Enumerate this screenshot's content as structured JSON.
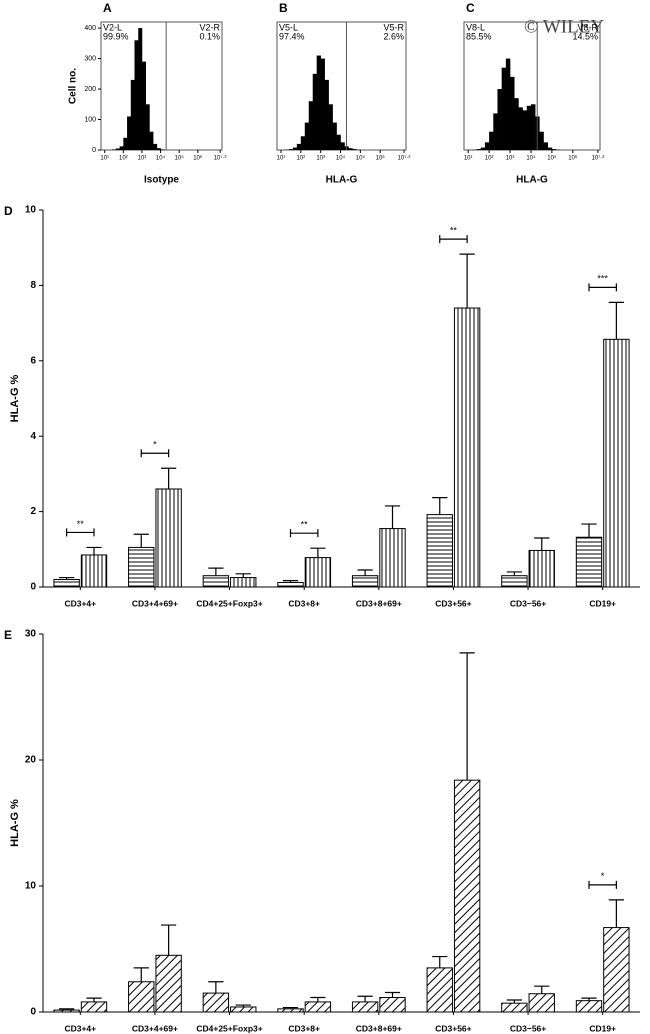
{
  "watermark": "© WILEY",
  "chart_data": [
    {
      "type": "histogram",
      "panel": "A",
      "x_label": "Isotype",
      "y_label": "Cell no.",
      "xlim": [
        0.8,
        7.3
      ],
      "xticks": [
        {
          "value": 1,
          "label": "10¹"
        },
        {
          "value": 2,
          "label": "10²"
        },
        {
          "value": 3,
          "label": "10³"
        },
        {
          "value": 4,
          "label": "10⁴"
        },
        {
          "value": 5,
          "label": "10⁵"
        },
        {
          "value": 6,
          "label": "10⁶"
        },
        {
          "value": 7.2,
          "label": "10⁷·²"
        }
      ],
      "ylim": [
        0,
        420
      ],
      "yticks": [
        0,
        100,
        200,
        300,
        400
      ],
      "bins": [
        1.0,
        1.2,
        1.4,
        1.6,
        1.8,
        2.0,
        2.2,
        2.4,
        2.6,
        2.8,
        3.0,
        3.2,
        3.4,
        3.6,
        3.8,
        4.0,
        4.2,
        4.4,
        4.6,
        4.8,
        5.0,
        5.2,
        5.4,
        5.6,
        5.8,
        6.0,
        6.2,
        6.4,
        6.6,
        6.8,
        7.0,
        7.2
      ],
      "counts": [
        0,
        0,
        2,
        5,
        12,
        40,
        110,
        230,
        360,
        400,
        290,
        150,
        60,
        20,
        6,
        2,
        0,
        0,
        0,
        0,
        0,
        0,
        0,
        0,
        0,
        0,
        0,
        0,
        0,
        0,
        0
      ],
      "color": "#000000",
      "gate": 4.3,
      "gates": {
        "names": [
          "V2-L",
          "V2-R"
        ],
        "values": [
          99.9,
          0.1
        ],
        "value_labels": [
          "99.9%",
          "0.1%"
        ]
      }
    },
    {
      "type": "histogram",
      "panel": "B",
      "x_label": "HLA-G",
      "xlim": [
        0.8,
        7.3
      ],
      "xticks": [
        {
          "value": 1,
          "label": "10¹"
        },
        {
          "value": 2,
          "label": "10²"
        },
        {
          "value": 3,
          "label": "10³"
        },
        {
          "value": 4,
          "label": "10⁴"
        },
        {
          "value": 5,
          "label": "10⁵"
        },
        {
          "value": 6,
          "label": "10⁶"
        },
        {
          "value": 7.2,
          "label": "10⁷·²"
        }
      ],
      "ylim": [
        0,
        420
      ],
      "bins": [
        1.0,
        1.2,
        1.4,
        1.6,
        1.8,
        2.0,
        2.2,
        2.4,
        2.6,
        2.8,
        3.0,
        3.2,
        3.4,
        3.6,
        3.8,
        4.0,
        4.2,
        4.4,
        4.6,
        4.8,
        5.0,
        5.2,
        5.4,
        5.6,
        5.8,
        6.0,
        6.2,
        6.4,
        6.6,
        6.8,
        7.0,
        7.2
      ],
      "counts": [
        0,
        1,
        3,
        8,
        20,
        45,
        90,
        160,
        250,
        310,
        300,
        230,
        150,
        90,
        50,
        25,
        12,
        6,
        3,
        1,
        0,
        0,
        0,
        0,
        0,
        0,
        0,
        0,
        0,
        0,
        0
      ],
      "color": "#000000",
      "gate": 4.3,
      "gates": {
        "names": [
          "V5-L",
          "V5-R"
        ],
        "values": [
          97.4,
          2.6
        ],
        "value_labels": [
          "97.4%",
          "2.6%"
        ]
      }
    },
    {
      "type": "histogram",
      "panel": "C",
      "x_label": "HLA-G",
      "xlim": [
        0.8,
        7.3
      ],
      "xticks": [
        {
          "value": 1,
          "label": "10¹"
        },
        {
          "value": 2,
          "label": "10²"
        },
        {
          "value": 3,
          "label": "10³"
        },
        {
          "value": 4,
          "label": "10⁴"
        },
        {
          "value": 5,
          "label": "10⁵"
        },
        {
          "value": 6,
          "label": "10⁶"
        },
        {
          "value": 7.2,
          "label": "10⁷·²"
        }
      ],
      "ylim": [
        0,
        420
      ],
      "bins": [
        1.0,
        1.2,
        1.4,
        1.6,
        1.8,
        2.0,
        2.2,
        2.4,
        2.6,
        2.8,
        3.0,
        3.2,
        3.4,
        3.6,
        3.8,
        4.0,
        4.2,
        4.4,
        4.6,
        4.8,
        5.0,
        5.2,
        5.4,
        5.6,
        5.8,
        6.0,
        6.2,
        6.4,
        6.6,
        6.8,
        7.0,
        7.2
      ],
      "counts": [
        0,
        1,
        3,
        8,
        25,
        60,
        120,
        200,
        270,
        300,
        240,
        170,
        140,
        130,
        145,
        150,
        110,
        60,
        25,
        8,
        3,
        1,
        0,
        0,
        0,
        0,
        0,
        0,
        0,
        0,
        0
      ],
      "color": "#000000",
      "gate": 4.3,
      "gates": {
        "names": [
          "V8-L",
          "V8-R"
        ],
        "values": [
          85.5,
          14.5
        ],
        "value_labels": [
          "85.5%",
          "14.5%"
        ]
      }
    },
    {
      "type": "bar",
      "panel": "D",
      "y_label": "HLA-G %",
      "categories": [
        "CD3+4+",
        "CD3+4+69+",
        "CD4+25+Foxp3+",
        "CD3+8+",
        "CD3+8+69+",
        "CD3+56+",
        "CD3−56+",
        "CD19+"
      ],
      "ylim": [
        0,
        10
      ],
      "yticks": [
        0,
        2,
        4,
        6,
        8,
        10
      ],
      "series": [
        {
          "hatch": "horizontal",
          "color": "#000000",
          "values": [
            0.2,
            1.05,
            0.3,
            0.12,
            0.3,
            1.92,
            0.3,
            1.32
          ],
          "errors": [
            0.05,
            0.35,
            0.2,
            0.05,
            0.15,
            0.45,
            0.1,
            0.35
          ]
        },
        {
          "hatch": "vertical",
          "color": "#000000",
          "values": [
            0.85,
            2.6,
            0.25,
            0.78,
            1.55,
            7.4,
            0.97,
            6.57
          ],
          "errors": [
            0.2,
            0.55,
            0.1,
            0.25,
            0.6,
            1.43,
            0.33,
            0.98
          ]
        }
      ],
      "significance": [
        "**",
        "*",
        null,
        "**",
        null,
        "**",
        null,
        "***"
      ]
    },
    {
      "type": "bar",
      "panel": "E",
      "y_label": "HLA-G %",
      "categories": [
        "CD3+4+",
        "CD3+4+69+",
        "CD4+25+Foxp3+",
        "CD3+8+",
        "CD3+8+69+",
        "CD3+56+",
        "CD3−56+",
        "CD19+"
      ],
      "ylim": [
        0,
        30
      ],
      "yticks": [
        0,
        10,
        20,
        30
      ],
      "series": [
        {
          "hatch": "diagonal",
          "color": "#000000",
          "values": [
            0.15,
            2.4,
            1.5,
            0.25,
            0.8,
            3.5,
            0.7,
            0.9
          ],
          "errors": [
            0.1,
            1.1,
            0.9,
            0.1,
            0.45,
            0.9,
            0.25,
            0.2
          ]
        },
        {
          "hatch": "diagonal",
          "color": "#000000",
          "values": [
            0.8,
            4.5,
            0.4,
            0.8,
            1.15,
            18.4,
            1.45,
            6.7
          ],
          "errors": [
            0.3,
            2.4,
            0.15,
            0.35,
            0.4,
            10.1,
            0.6,
            2.2
          ]
        }
      ],
      "significance": [
        null,
        null,
        null,
        null,
        null,
        null,
        null,
        "*"
      ]
    }
  ]
}
